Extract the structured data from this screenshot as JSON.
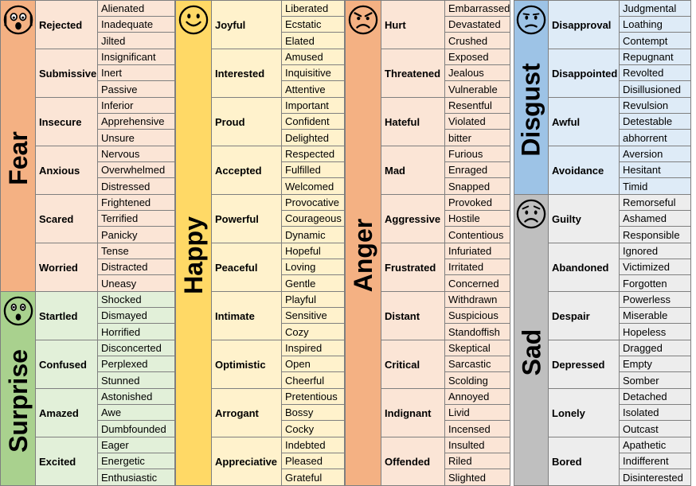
{
  "colors": {
    "fear": {
      "band": "#f4b183",
      "cell": "#fbe5d6"
    },
    "surprise": {
      "band": "#a9d18e",
      "cell": "#e2f0d9"
    },
    "happy": {
      "band": "#ffd966",
      "cell": "#fff2cc"
    },
    "anger": {
      "band": "#f4b183",
      "cell": "#fbe5d6"
    },
    "disgust": {
      "band": "#9dc3e6",
      "cell": "#deebf7"
    },
    "sad": {
      "band": "#bfbfbf",
      "cell": "#ededed"
    }
  },
  "columns": [
    {
      "groups": [
        {
          "key": "fear",
          "name": "Fear",
          "icon": "scared-face-icon",
          "rows": [
            {
              "label": "Rejected",
              "words": [
                "Alienated",
                "Inadequate",
                "Jilted"
              ]
            },
            {
              "label": "Submissive",
              "words": [
                "Insignificant",
                "Inert",
                "Passive"
              ]
            },
            {
              "label": "Insecure",
              "words": [
                "Inferior",
                "Apprehensive",
                "Unsure"
              ]
            },
            {
              "label": "Anxious",
              "words": [
                "Nervous",
                "Overwhelmed",
                "Distressed"
              ]
            },
            {
              "label": "Scared",
              "words": [
                "Frightened",
                "Terrified",
                "Panicky"
              ]
            },
            {
              "label": "Worried",
              "words": [
                "Tense",
                "Distracted",
                "Uneasy"
              ]
            }
          ]
        },
        {
          "key": "surprise",
          "name": "Surprise",
          "icon": "surprised-face-icon",
          "rows": [
            {
              "label": "Startled",
              "words": [
                "Shocked",
                "Dismayed",
                "Horrified"
              ]
            },
            {
              "label": "Confused",
              "words": [
                "Disconcerted",
                "Perplexed",
                "Stunned"
              ]
            },
            {
              "label": "Amazed",
              "words": [
                "Astonished",
                "Awe",
                "Dumbfounded"
              ]
            },
            {
              "label": "Excited",
              "words": [
                "Eager",
                "Energetic",
                "Enthusiastic"
              ]
            }
          ]
        }
      ]
    },
    {
      "groups": [
        {
          "key": "happy",
          "name": "Happy",
          "icon": "smiling-face-icon",
          "rows": [
            {
              "label": "Joyful",
              "words": [
                "Liberated",
                "Ecstatic",
                "Elated"
              ]
            },
            {
              "label": "Interested",
              "words": [
                "Amused",
                "Inquisitive",
                "Attentive"
              ]
            },
            {
              "label": "Proud",
              "words": [
                "Important",
                "Confident",
                "Delighted"
              ]
            },
            {
              "label": "Accepted",
              "words": [
                "Respected",
                "Fulfilled",
                "Welcomed"
              ]
            },
            {
              "label": "Powerful",
              "words": [
                "Provocative",
                "Courageous",
                "Dynamic"
              ]
            },
            {
              "label": "Peaceful",
              "words": [
                "Hopeful",
                "Loving",
                "Gentle"
              ]
            },
            {
              "label": "Intimate",
              "words": [
                "Playful",
                "Sensitive",
                "Cozy"
              ]
            },
            {
              "label": "Optimistic",
              "words": [
                "Inspired",
                "Open",
                "Cheerful"
              ]
            },
            {
              "label": "Arrogant",
              "words": [
                "Pretentious",
                "Bossy",
                "Cocky"
              ]
            },
            {
              "label": "Appreciative",
              "words": [
                "Indebted",
                "Pleased",
                "Grateful"
              ]
            }
          ]
        }
      ]
    },
    {
      "groups": [
        {
          "key": "anger",
          "name": "Anger",
          "icon": "angry-face-icon",
          "rows": [
            {
              "label": "Hurt",
              "words": [
                "Embarrassed",
                "Devastated",
                "Crushed"
              ]
            },
            {
              "label": "Threatened",
              "words": [
                "Exposed",
                "Jealous",
                "Vulnerable"
              ]
            },
            {
              "label": "Hateful",
              "words": [
                "Resentful",
                "Violated",
                "bitter"
              ]
            },
            {
              "label": "Mad",
              "words": [
                "Furious",
                "Enraged",
                "Snapped"
              ]
            },
            {
              "label": "Aggressive",
              "words": [
                "Provoked",
                "Hostile",
                "Contentious"
              ]
            },
            {
              "label": "Frustrated",
              "words": [
                "Infuriated",
                "Irritated",
                "Concerned"
              ]
            },
            {
              "label": "Distant",
              "words": [
                "Withdrawn",
                "Suspicious",
                "Standoffish"
              ]
            },
            {
              "label": "Critical",
              "words": [
                "Skeptical",
                "Sarcastic",
                "Scolding"
              ]
            },
            {
              "label": "Indignant",
              "words": [
                "Annoyed",
                "Livid",
                "Incensed"
              ]
            },
            {
              "label": "Offended",
              "words": [
                "Insulted",
                "Riled",
                "Slighted"
              ]
            }
          ]
        }
      ]
    },
    {
      "groups": [
        {
          "key": "disgust",
          "name": "Disgust",
          "icon": "displeased-face-icon",
          "rows": [
            {
              "label": "Disapproval",
              "words": [
                "Judgmental",
                "Loathing",
                "Contempt"
              ]
            },
            {
              "label": "Disappointed",
              "words": [
                "Repugnant",
                "Revolted",
                "Disillusioned"
              ]
            },
            {
              "label": "Awful",
              "words": [
                "Revulsion",
                "Detestable",
                "abhorrent"
              ]
            },
            {
              "label": "Avoidance",
              "words": [
                "Aversion",
                "Hesitant",
                "Timid"
              ]
            }
          ]
        },
        {
          "key": "sad",
          "name": "Sad",
          "icon": "sad-face-icon",
          "rows": [
            {
              "label": "Guilty",
              "words": [
                "Remorseful",
                "Ashamed",
                "Responsible"
              ]
            },
            {
              "label": "Abandoned",
              "words": [
                "Ignored",
                "Victimized",
                "Forgotten"
              ]
            },
            {
              "label": "Despair",
              "words": [
                "Powerless",
                "Miserable",
                "Hopeless"
              ]
            },
            {
              "label": "Depressed",
              "words": [
                "Dragged",
                "Empty",
                "Somber"
              ]
            },
            {
              "label": "Lonely",
              "words": [
                "Detached",
                "Isolated",
                "Outcast"
              ]
            },
            {
              "label": "Bored",
              "words": [
                "Apathetic",
                "Indifferent",
                "Disinterested"
              ]
            }
          ]
        }
      ]
    }
  ]
}
